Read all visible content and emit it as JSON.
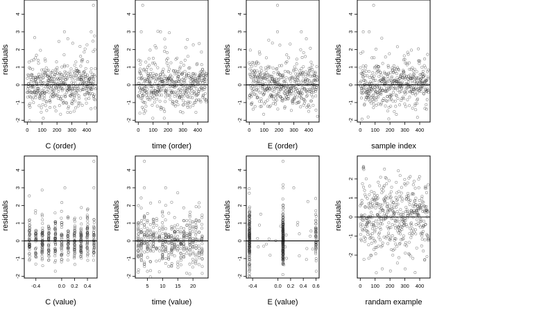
{
  "chart_data": [
    {
      "type": "scatter",
      "ylabel": "residuals",
      "xlabel": "C (order)",
      "xticks": [
        "0",
        "100",
        "200",
        "300",
        "400"
      ],
      "xlim": [
        -20,
        470
      ],
      "ylim": [
        -2.1,
        4.8
      ],
      "yticks": [
        "-2",
        "-1",
        "0",
        "1",
        "2",
        "3",
        "4"
      ],
      "hline": 0,
      "pattern": "order",
      "seed": 11,
      "outliers": [
        [
          445,
          4.5
        ],
        [
          250,
          3.0
        ],
        [
          430,
          3.0
        ]
      ]
    },
    {
      "type": "scatter",
      "ylabel": "residuals",
      "xlabel": "time (order)",
      "xticks": [
        "0",
        "100",
        "200",
        "300",
        "400"
      ],
      "xlim": [
        -20,
        470
      ],
      "ylim": [
        -2.1,
        4.8
      ],
      "yticks": [
        "-2",
        "-1",
        "0",
        "1",
        "2",
        "3",
        "4"
      ],
      "hline": 0,
      "pattern": "order",
      "seed": 23,
      "outliers": [
        [
          30,
          4.5
        ],
        [
          20,
          3.0
        ],
        [
          150,
          3.0
        ]
      ]
    },
    {
      "type": "scatter",
      "ylabel": "residuals",
      "xlabel": "E (order)",
      "xticks": [
        "0",
        "100",
        "200",
        "300",
        "400"
      ],
      "xlim": [
        -20,
        470
      ],
      "ylim": [
        -2.1,
        4.8
      ],
      "yticks": [
        "-2",
        "-1",
        "0",
        "1",
        "2",
        "3",
        "4"
      ],
      "hline": 0,
      "pattern": "order",
      "seed": 37,
      "outliers": [
        [
          190,
          4.5
        ],
        [
          190,
          3.0
        ],
        [
          350,
          3.0
        ]
      ]
    },
    {
      "type": "scatter",
      "ylabel": "residuals",
      "xlabel": "sample index",
      "xticks": [
        "0",
        "100",
        "200",
        "300",
        "400"
      ],
      "xlim": [
        -20,
        470
      ],
      "ylim": [
        -2.1,
        4.8
      ],
      "yticks": [
        "-2",
        "-1",
        "0",
        "1",
        "2",
        "3",
        "4"
      ],
      "hline": 0,
      "pattern": "order",
      "seed": 41,
      "outliers": [
        [
          90,
          4.5
        ],
        [
          20,
          3.0
        ],
        [
          60,
          3.0
        ]
      ]
    },
    {
      "type": "scatter",
      "ylabel": "residuals",
      "xlabel": "C (value)",
      "xticks": [
        "-0.4",
        "0.0",
        "0.2",
        "0.4"
      ],
      "xtickvals": [
        -0.4,
        0.0,
        0.2,
        0.4
      ],
      "xlim": [
        -0.58,
        0.55
      ],
      "ylim": [
        -2.1,
        4.8
      ],
      "yticks": [
        "-2",
        "-1",
        "0",
        "1",
        "2",
        "3",
        "4"
      ],
      "hline": 0,
      "pattern": "cvalue",
      "seed": 53,
      "outliers": [
        [
          0.5,
          4.5
        ],
        [
          0.05,
          3.0
        ],
        [
          0.5,
          3.0
        ]
      ]
    },
    {
      "type": "scatter",
      "ylabel": "residuals",
      "xlabel": "time (value)",
      "xticks": [
        "5",
        "10",
        "15",
        "20"
      ],
      "xtickvals": [
        5,
        10,
        15,
        20
      ],
      "xlim": [
        1,
        25
      ],
      "ylim": [
        -2.1,
        4.8
      ],
      "yticks": [
        "-2",
        "-1",
        "0",
        "1",
        "2",
        "3",
        "4"
      ],
      "hline": 0,
      "pattern": "tvalue",
      "seed": 67,
      "outliers": [
        [
          4,
          4.5
        ],
        [
          4,
          3.0
        ],
        [
          11,
          3.0
        ]
      ]
    },
    {
      "type": "scatter",
      "ylabel": "residuals",
      "xlabel": "E (value)",
      "xticks": [
        "-0.4",
        "0.0",
        "0.2",
        "0.4",
        "0.6"
      ],
      "xtickvals": [
        -0.4,
        0.0,
        0.2,
        0.4,
        0.6
      ],
      "xlim": [
        -0.5,
        0.65
      ],
      "ylim": [
        -2.1,
        4.8
      ],
      "yticks": [
        "-2",
        "-1",
        "0",
        "1",
        "2",
        "3",
        "4"
      ],
      "hline": 0,
      "pattern": "evalue",
      "seed": 71,
      "outliers": [
        [
          0.08,
          4.5
        ],
        [
          0.08,
          3.0
        ],
        [
          0.25,
          3.0
        ]
      ]
    },
    {
      "type": "scatter",
      "ylabel": "residuals",
      "xlabel": "randam example",
      "xticks": [
        "0",
        "100",
        "200",
        "300",
        "400"
      ],
      "xlim": [
        -20,
        470
      ],
      "ylim": [
        -3.2,
        3.2
      ],
      "yticks": [
        "-2",
        "-1",
        "0",
        "1",
        "2"
      ],
      "hline": 0,
      "pattern": "random",
      "seed": 83,
      "outliers": []
    }
  ]
}
